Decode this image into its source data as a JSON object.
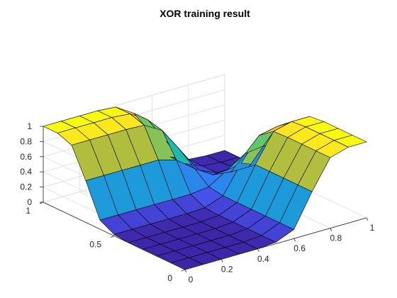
{
  "chart_data": {
    "type": "surface",
    "title": "XOR training result",
    "xlabel": "",
    "ylabel": "",
    "zlabel": "",
    "grid": true,
    "colormap": "parula",
    "xlim": [
      0,
      1
    ],
    "ylim": [
      0,
      1
    ],
    "zlim": [
      0,
      1
    ],
    "x": [
      0,
      0.1,
      0.2,
      0.3,
      0.4,
      0.5,
      0.6,
      0.7,
      0.8,
      0.9,
      1
    ],
    "y": [
      0,
      0.1,
      0.2,
      0.3,
      0.4,
      0.5,
      0.6,
      0.7,
      0.8,
      0.9,
      1
    ],
    "x_ticks": [
      "0",
      "0.2",
      "0.4",
      "0.6",
      "0.8",
      "1"
    ],
    "y_ticks": [
      "0",
      "0.5",
      "1"
    ],
    "z_ticks": [
      "0",
      "0.2",
      "0.4",
      "0.6",
      "0.8",
      "1"
    ],
    "z_description": "z[i][j] is the output at x[i], y[j]; about 0 where x and y agree, about 1 where they differ",
    "z": [
      [
        0,
        0,
        0,
        0,
        0,
        0.02,
        0.12,
        0.55,
        0.93,
        1,
        1
      ],
      [
        0,
        0,
        0,
        0,
        0,
        0.02,
        0.12,
        0.55,
        0.93,
        1,
        1
      ],
      [
        0,
        0,
        0,
        0,
        0,
        0.02,
        0.12,
        0.55,
        0.93,
        1,
        1
      ],
      [
        0,
        0,
        0,
        0,
        0,
        0.02,
        0.12,
        0.55,
        0.93,
        1,
        1
      ],
      [
        0,
        0,
        0,
        0,
        0,
        0.02,
        0.12,
        0.55,
        0.92,
        0.98,
        0.98
      ],
      [
        0.02,
        0.02,
        0.02,
        0.02,
        0.02,
        0.03,
        0.12,
        0.48,
        0.78,
        0.83,
        0.83
      ],
      [
        0.12,
        0.12,
        0.12,
        0.12,
        0.12,
        0.12,
        0.15,
        0.3,
        0.45,
        0.48,
        0.48
      ],
      [
        0.55,
        0.55,
        0.55,
        0.55,
        0.55,
        0.48,
        0.3,
        0.15,
        0.12,
        0.12,
        0.12
      ],
      [
        0.93,
        0.93,
        0.93,
        0.93,
        0.92,
        0.78,
        0.45,
        0.12,
        0.02,
        0.02,
        0.02
      ],
      [
        1,
        1,
        1,
        1,
        0.98,
        0.83,
        0.48,
        0.12,
        0.02,
        0,
        0
      ],
      [
        1,
        1,
        1,
        1,
        0.98,
        0.83,
        0.48,
        0.12,
        0.02,
        0,
        0
      ]
    ]
  }
}
